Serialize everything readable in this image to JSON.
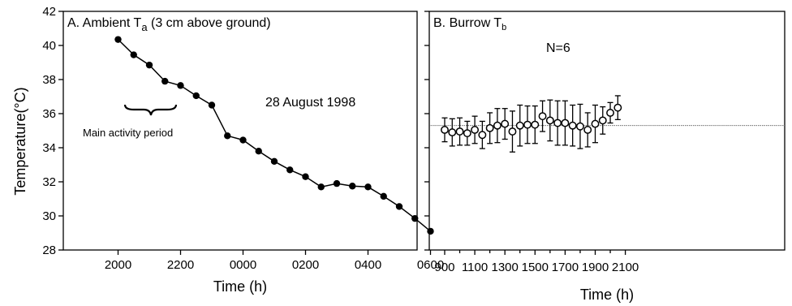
{
  "figure": {
    "ylabel": "Temperature(°C)"
  },
  "chart_data": [
    {
      "type": "line",
      "panel_label": "A. Ambient T",
      "panel_label_sub": "a",
      "panel_label_rest": " (3 cm above ground)",
      "date_annotation": "28 August 1998",
      "activity_annotation": "Main activity period",
      "xlabel": "Time (h)",
      "ylabel": "Temperature(°C)",
      "xticks": [
        "2000",
        "2200",
        "0000",
        "0200",
        "0400",
        "0600"
      ],
      "yticks": [
        28,
        30,
        32,
        34,
        36,
        38,
        40,
        42
      ],
      "ylim": [
        28,
        42
      ],
      "grid": false,
      "series": [
        {
          "markers": "filled-circle",
          "points": [
            {
              "x": "2000",
              "y": 40.35
            },
            {
              "x": "2030",
              "y": 39.45
            },
            {
              "x": "2100",
              "y": 38.85
            },
            {
              "x": "2130",
              "y": 37.9
            },
            {
              "x": "2200",
              "y": 37.65
            },
            {
              "x": "2230",
              "y": 37.05
            },
            {
              "x": "2300",
              "y": 36.5
            },
            {
              "x": "2330",
              "y": 34.7
            },
            {
              "x": "0000",
              "y": 34.45
            },
            {
              "x": "0030",
              "y": 33.8
            },
            {
              "x": "0100",
              "y": 33.2
            },
            {
              "x": "0130",
              "y": 32.7
            },
            {
              "x": "0200",
              "y": 32.3
            },
            {
              "x": "0230",
              "y": 31.7
            },
            {
              "x": "0300",
              "y": 31.9
            },
            {
              "x": "0330",
              "y": 31.75
            },
            {
              "x": "0400",
              "y": 31.7
            },
            {
              "x": "0430",
              "y": 31.15
            },
            {
              "x": "0500",
              "y": 30.55
            },
            {
              "x": "0530",
              "y": 29.85
            },
            {
              "x": "0600",
              "y": 29.1
            }
          ]
        }
      ]
    },
    {
      "type": "scatter",
      "panel_label": "B. Burrow T",
      "panel_label_sub": "b",
      "sample_annotation": "N=6",
      "xlabel": "Time (h)",
      "xticks": [
        "900",
        "1100",
        "1300",
        "1500",
        "1700",
        "1900",
        "2100"
      ],
      "reference_line_y": 35.3,
      "grid": false,
      "series": [
        {
          "markers": "open-circle-with-error-bars",
          "points": [
            {
              "x": 900,
              "y": 35.05,
              "err": 0.7
            },
            {
              "x": 950,
              "y": 34.9,
              "err": 0.8
            },
            {
              "x": 1000,
              "y": 34.95,
              "err": 0.8
            },
            {
              "x": 1050,
              "y": 34.85,
              "err": 0.7
            },
            {
              "x": 1100,
              "y": 35.05,
              "err": 0.8
            },
            {
              "x": 1150,
              "y": 34.75,
              "err": 0.8
            },
            {
              "x": 1200,
              "y": 35.15,
              "err": 0.9
            },
            {
              "x": 1250,
              "y": 35.3,
              "err": 1.0
            },
            {
              "x": 1300,
              "y": 35.4,
              "err": 0.9
            },
            {
              "x": 1350,
              "y": 34.95,
              "err": 1.2
            },
            {
              "x": 1400,
              "y": 35.3,
              "err": 1.2
            },
            {
              "x": 1450,
              "y": 35.35,
              "err": 1.1
            },
            {
              "x": 1500,
              "y": 35.35,
              "err": 1.1
            },
            {
              "x": 1550,
              "y": 35.85,
              "err": 0.9
            },
            {
              "x": 1600,
              "y": 35.6,
              "err": 1.2
            },
            {
              "x": 1650,
              "y": 35.45,
              "err": 1.3
            },
            {
              "x": 1700,
              "y": 35.45,
              "err": 1.3
            },
            {
              "x": 1750,
              "y": 35.3,
              "err": 1.2
            },
            {
              "x": 1800,
              "y": 35.25,
              "err": 1.3
            },
            {
              "x": 1850,
              "y": 35.05,
              "err": 1.0
            },
            {
              "x": 1900,
              "y": 35.4,
              "err": 1.1
            },
            {
              "x": 1950,
              "y": 35.6,
              "err": 0.8
            },
            {
              "x": 2000,
              "y": 36.05,
              "err": 0.6
            },
            {
              "x": 2050,
              "y": 36.35,
              "err": 0.7
            }
          ]
        }
      ]
    }
  ]
}
